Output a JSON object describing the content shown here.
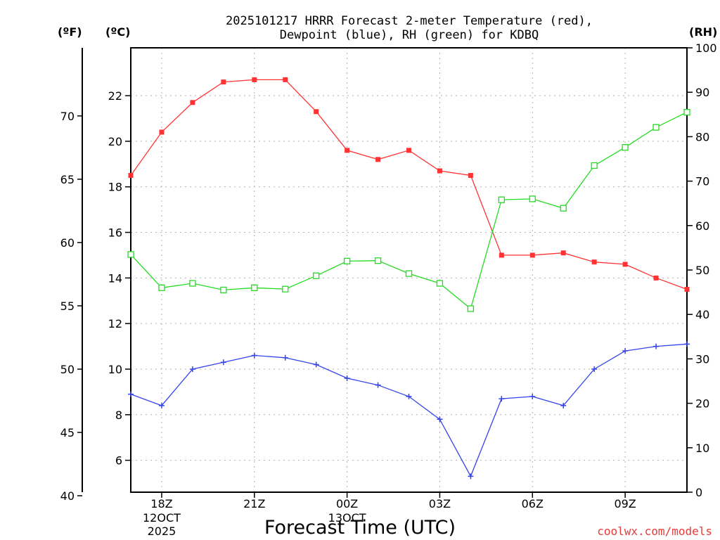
{
  "chart_data": {
    "type": "line",
    "title_line1": "2025101217 HRRR Forecast 2-meter Temperature (red),",
    "title_line2": "Dewpoint (blue), RH (green) for KDBQ",
    "xlabel": "Forecast Time (UTC)",
    "credit": "coolwx.com/models",
    "units": {
      "fahrenheit": "(ºF)",
      "celsius": "(ºC)",
      "rh": "(RH)"
    },
    "x_ticks": [
      {
        "hour": 1,
        "label": "18Z",
        "sub1": "12OCT",
        "sub2": "2025"
      },
      {
        "hour": 4,
        "label": "21Z",
        "sub1": "",
        "sub2": ""
      },
      {
        "hour": 7,
        "label": "00Z",
        "sub1": "13OCT",
        "sub2": ""
      },
      {
        "hour": 10,
        "label": "03Z",
        "sub1": "",
        "sub2": ""
      },
      {
        "hour": 13,
        "label": "06Z",
        "sub1": "",
        "sub2": ""
      },
      {
        "hour": 16,
        "label": "09Z",
        "sub1": "",
        "sub2": ""
      }
    ],
    "x_range": [
      0,
      18
    ],
    "celsius_axis": {
      "range": [
        4.6,
        24.1
      ],
      "ticks": [
        "6",
        "8",
        "10",
        "12",
        "14",
        "16",
        "18",
        "20",
        "22"
      ]
    },
    "fahrenheit_axis": {
      "ticks": [
        "40",
        "45",
        "50",
        "55",
        "60",
        "65",
        "70"
      ]
    },
    "rh_axis": {
      "range": [
        0,
        100
      ],
      "ticks": [
        "0",
        "10",
        "20",
        "30",
        "40",
        "50",
        "60",
        "70",
        "80",
        "90",
        "100"
      ]
    },
    "series": [
      {
        "name": "Temperature",
        "unit": "C",
        "color": "#ff3333",
        "marker": "filled-square",
        "values": [
          18.5,
          20.4,
          21.7,
          22.6,
          22.7,
          22.7,
          21.3,
          19.6,
          19.2,
          19.6,
          18.7,
          18.5,
          15.0,
          15.0,
          15.1,
          14.7,
          14.6,
          14.0,
          13.5
        ]
      },
      {
        "name": "Dewpoint",
        "unit": "C",
        "color": "#3344ee",
        "marker": "plus",
        "values": [
          8.9,
          8.4,
          10.0,
          10.3,
          10.6,
          10.5,
          10.2,
          9.6,
          9.3,
          8.8,
          7.8,
          5.3,
          8.7,
          8.8,
          8.4,
          10.0,
          10.8,
          11.0,
          11.1
        ]
      },
      {
        "name": "RH",
        "unit": "%",
        "color": "#22dd22",
        "marker": "open-square",
        "values": [
          53.5,
          46.0,
          47.0,
          45.5,
          46.0,
          45.7,
          48.7,
          52.0,
          52.1,
          49.2,
          47.0,
          41.3,
          65.8,
          66.0,
          63.9,
          73.5,
          77.6,
          82.1,
          85.5
        ]
      }
    ]
  }
}
